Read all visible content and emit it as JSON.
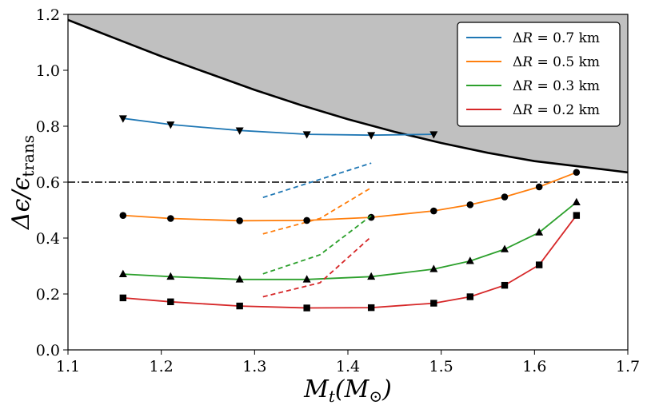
{
  "chart_data": {
    "type": "line",
    "xlim": [
      1.1,
      1.7
    ],
    "ylim": [
      0.0,
      1.2
    ],
    "xticks": [
      "1.1",
      "1.2",
      "1.3",
      "1.4",
      "1.5",
      "1.6",
      "1.7"
    ],
    "yticks": [
      "0.0",
      "0.2",
      "0.4",
      "0.6",
      "0.8",
      "1.0",
      "1.2"
    ],
    "xticks_values": [
      1.1,
      1.2,
      1.3,
      1.4,
      1.5,
      1.6,
      1.7
    ],
    "yticks_values": [
      0.0,
      0.2,
      0.4,
      0.6,
      0.8,
      1.0,
      1.2
    ],
    "xlabel": "M_t(M_⊙)",
    "ylabel": "Δε/ε_trans",
    "xlabel_main": "M",
    "xlabel_sub": "t",
    "xlabel_rest": "(M",
    "xlabel_odot": "⊙",
    "xlabel_close": ")",
    "ylabel_main": "Δϵ/ϵ",
    "ylabel_sub": "trans",
    "legend": {
      "position": "top-right"
    },
    "threshold_line": {
      "y": 0.6,
      "style": "dash-dot",
      "color": "#000000"
    },
    "upper_bound": {
      "color": "#000000",
      "fill_color": "#c0c0c0",
      "x": [
        1.1,
        1.15,
        1.2,
        1.25,
        1.3,
        1.35,
        1.4,
        1.45,
        1.5,
        1.55,
        1.6,
        1.65,
        1.7
      ],
      "y": [
        1.18,
        1.115,
        1.05,
        0.99,
        0.93,
        0.875,
        0.825,
        0.78,
        0.74,
        0.705,
        0.675,
        0.655,
        0.635
      ]
    },
    "series": [
      {
        "name": "ΔR = 0.7 km",
        "label_prefix": "Δ",
        "label_symbol": "R",
        "label_value": " = 0.7 km",
        "color": "#1f77b4",
        "marker": "triangle-down",
        "x": [
          1.159,
          1.21,
          1.284,
          1.356,
          1.425,
          1.492
        ],
        "y": [
          0.828,
          0.806,
          0.785,
          0.771,
          0.768,
          0.771
        ],
        "dashed_x": [
          1.309,
          1.425
        ],
        "dashed_y": [
          0.545,
          0.668
        ]
      },
      {
        "name": "ΔR = 0.5 km",
        "label_prefix": "Δ",
        "label_symbol": "R",
        "label_value": " = 0.5 km",
        "color": "#ff7f0e",
        "marker": "circle",
        "x": [
          1.159,
          1.21,
          1.284,
          1.356,
          1.425,
          1.492,
          1.531,
          1.568,
          1.605,
          1.645
        ],
        "y": [
          0.481,
          0.47,
          0.462,
          0.463,
          0.474,
          0.497,
          0.519,
          0.547,
          0.583,
          0.635
        ],
        "dashed_x": [
          1.309,
          1.37,
          1.425
        ],
        "dashed_y": [
          0.415,
          0.47,
          0.58
        ]
      },
      {
        "name": "ΔR = 0.3 km",
        "label_prefix": "Δ",
        "label_symbol": "R",
        "label_value": " = 0.3 km",
        "color": "#2ca02c",
        "marker": "triangle-up",
        "x": [
          1.159,
          1.21,
          1.284,
          1.356,
          1.425,
          1.492,
          1.531,
          1.568,
          1.605,
          1.645
        ],
        "y": [
          0.271,
          0.262,
          0.252,
          0.252,
          0.262,
          0.289,
          0.318,
          0.36,
          0.42,
          0.528
        ],
        "dashed_x": [
          1.309,
          1.37,
          1.425
        ],
        "dashed_y": [
          0.272,
          0.34,
          0.48
        ]
      },
      {
        "name": "ΔR = 0.2 km",
        "label_prefix": "Δ",
        "label_symbol": "R",
        "label_value": " = 0.2 km",
        "color": "#d62728",
        "marker": "square",
        "x": [
          1.159,
          1.21,
          1.284,
          1.356,
          1.425,
          1.492,
          1.531,
          1.568,
          1.605,
          1.645
        ],
        "y": [
          0.186,
          0.172,
          0.157,
          0.15,
          0.151,
          0.167,
          0.19,
          0.231,
          0.304,
          0.481
        ],
        "dashed_x": [
          1.309,
          1.37,
          1.425
        ],
        "dashed_y": [
          0.19,
          0.24,
          0.405
        ]
      }
    ]
  }
}
